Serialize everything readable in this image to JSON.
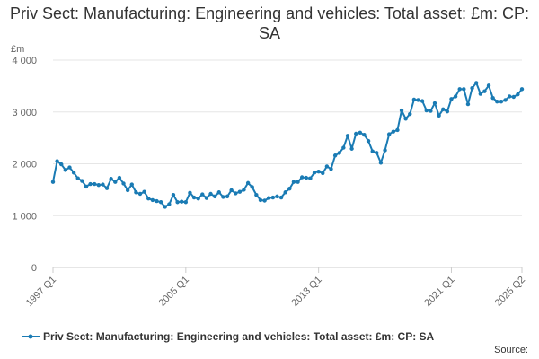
{
  "chart_data": {
    "type": "line",
    "title": "Priv Sect: Manufacturing: Engineering and vehicles: Total asset: £m: CP: SA",
    "ylabel": "£m",
    "xlabel": "",
    "ylim": [
      0,
      4000
    ],
    "yticks": [
      0,
      1000,
      2000,
      3000,
      4000
    ],
    "ytick_labels": [
      "0",
      "1 000",
      "2 000",
      "3 000",
      "4 000"
    ],
    "xtick_labels": [
      "1997 Q1",
      "2005 Q1",
      "2013 Q1",
      "2021 Q1",
      "2025 Q2"
    ],
    "xtick_indices": [
      0,
      32,
      64,
      96,
      113
    ],
    "legend": "bottom",
    "source_label": "Source:",
    "series": [
      {
        "name": "Priv Sect: Manufacturing: Engineering and vehicles: Total asset: £m: CP: SA",
        "color": "#1a7bb4",
        "start": "1997 Q1",
        "values": [
          1650,
          2050,
          1990,
          1880,
          1930,
          1830,
          1720,
          1670,
          1560,
          1610,
          1610,
          1590,
          1600,
          1530,
          1710,
          1650,
          1730,
          1620,
          1490,
          1600,
          1450,
          1420,
          1460,
          1330,
          1300,
          1280,
          1260,
          1170,
          1220,
          1400,
          1260,
          1270,
          1260,
          1440,
          1350,
          1330,
          1410,
          1340,
          1420,
          1370,
          1450,
          1360,
          1370,
          1490,
          1430,
          1460,
          1500,
          1630,
          1550,
          1400,
          1300,
          1290,
          1340,
          1350,
          1370,
          1350,
          1450,
          1520,
          1650,
          1650,
          1740,
          1730,
          1720,
          1830,
          1850,
          1820,
          1950,
          1900,
          2160,
          2210,
          2310,
          2540,
          2290,
          2580,
          2600,
          2560,
          2440,
          2240,
          2210,
          2020,
          2260,
          2570,
          2620,
          2650,
          3030,
          2870,
          2960,
          3240,
          3230,
          3210,
          3030,
          3020,
          3170,
          2930,
          3050,
          3010,
          3250,
          3300,
          3440,
          3440,
          3150,
          3460,
          3560,
          3350,
          3400,
          3510,
          3270,
          3200,
          3200,
          3230,
          3300,
          3290,
          3340,
          3440
        ]
      }
    ]
  }
}
